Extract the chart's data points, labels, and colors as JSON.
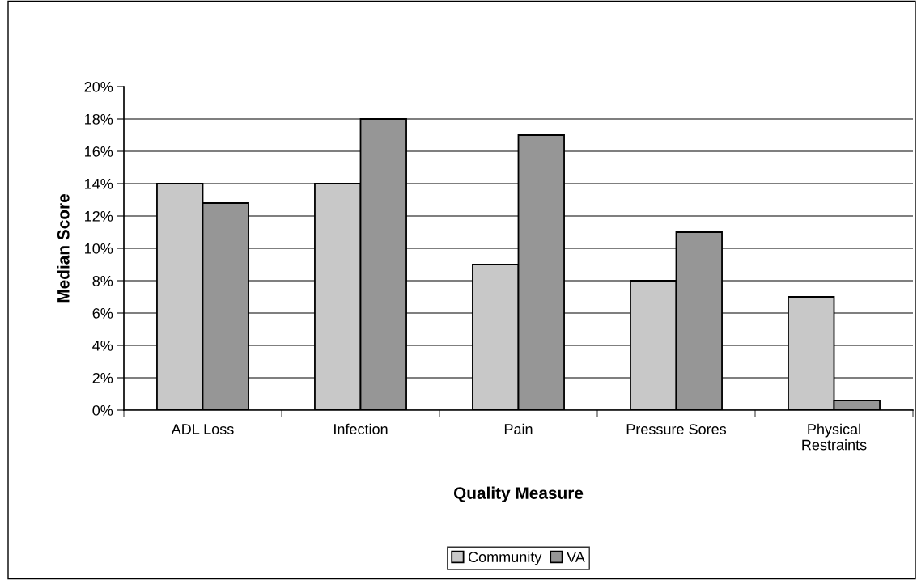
{
  "chart_data": {
    "type": "bar",
    "xlabel": "Quality Measure",
    "ylabel": "Median Score",
    "categories": [
      "ADL Loss",
      "Infection",
      "Pain",
      "Pressure Sores",
      "Physical\nRestraints"
    ],
    "series": [
      {
        "name": "Community",
        "color": "#c8c8c8",
        "values": [
          14,
          14,
          9,
          8,
          7
        ]
      },
      {
        "name": "VA",
        "color": "#969696",
        "values": [
          12.8,
          18,
          17,
          11,
          0.6
        ]
      }
    ],
    "ylim": [
      0,
      20
    ],
    "yticks": [
      {
        "value": 0,
        "label": "0%"
      },
      {
        "value": 2,
        "label": "2%"
      },
      {
        "value": 4,
        "label": "4%"
      },
      {
        "value": 6,
        "label": "6%"
      },
      {
        "value": 8,
        "label": "8%"
      },
      {
        "value": 10,
        "label": "10%"
      },
      {
        "value": 12,
        "label": "12%"
      },
      {
        "value": 14,
        "label": "14%"
      },
      {
        "value": 16,
        "label": "16%"
      },
      {
        "value": 18,
        "label": "18%"
      },
      {
        "value": 20,
        "label": "20%"
      }
    ],
    "grid": "y",
    "legend": "bottom"
  }
}
